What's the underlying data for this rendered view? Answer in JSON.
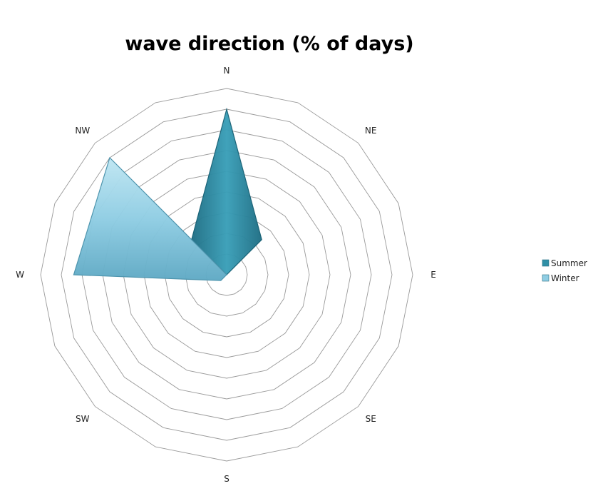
{
  "chart_data": {
    "type": "radar",
    "title": "wave direction (% of days)",
    "categories": [
      "N",
      "NE",
      "E",
      "SE",
      "S",
      "SW",
      "W",
      "NW"
    ],
    "axis_range": [
      0,
      45
    ],
    "grid": true,
    "legend_placement": "right",
    "series": [
      {
        "name": "Summer",
        "color": "#2f8fa6",
        "values": [
          40,
          12,
          0,
          0,
          0,
          0,
          0,
          12
        ]
      },
      {
        "name": "Winter",
        "color": "#8fcde3",
        "values": [
          0,
          0,
          0,
          0,
          0,
          2,
          37,
          40
        ]
      }
    ]
  }
}
